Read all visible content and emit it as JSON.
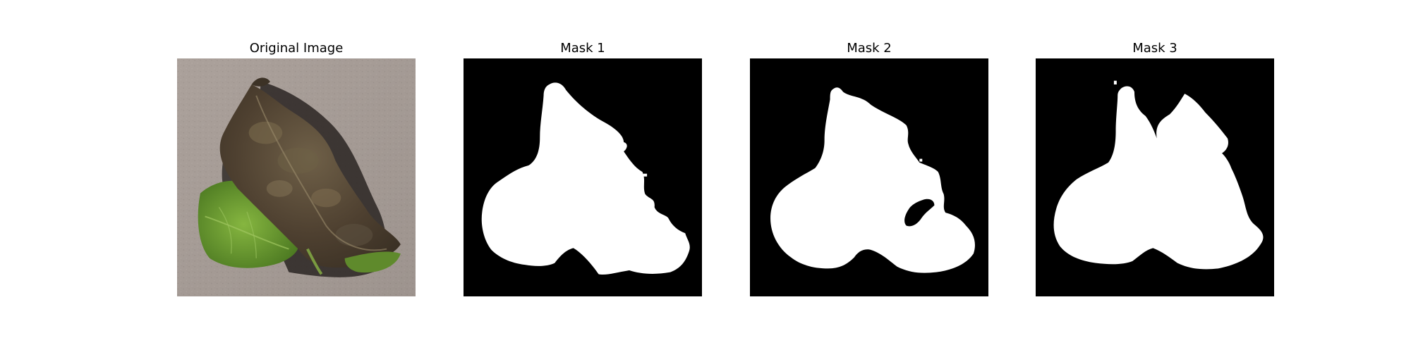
{
  "panels": [
    {
      "title": "Original Image"
    },
    {
      "title": "Mask 1"
    },
    {
      "title": "Mask 2"
    },
    {
      "title": "Mask 3"
    }
  ],
  "colors": {
    "background": "#ffffff",
    "mask_background": "#000000",
    "mask_foreground": "#ffffff",
    "paper": "#a89e98",
    "leaf_diseased": "#5a4a36",
    "leaf_healthy": "#6b9a32",
    "shadow": "#2a2522"
  }
}
